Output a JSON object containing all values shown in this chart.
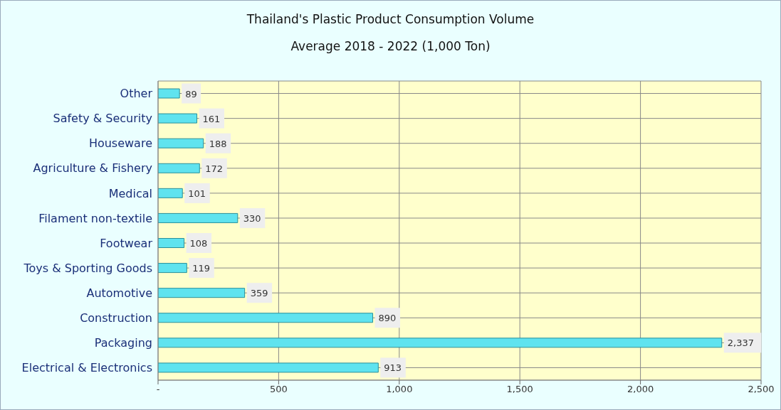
{
  "chart_data": {
    "type": "bar",
    "orientation": "horizontal",
    "title": "Thailand's Plastic Product Consumption Volume",
    "subtitle": "Average 2018 - 2022 (1,000 Ton)",
    "categories": [
      "Other",
      "Safety & Security",
      "Houseware",
      "Agriculture & Fishery",
      "Medical ",
      "Filament non-textile",
      "Footwear",
      "Toys & Sporting Goods",
      "Automotive",
      "Construction",
      "Packaging",
      "Electrical & Electronics"
    ],
    "values": [
      89,
      161,
      188,
      172,
      101,
      330,
      108,
      119,
      359,
      890,
      2337,
      913
    ],
    "value_labels": [
      "89",
      "161",
      "188",
      "172",
      "101",
      "330",
      "108",
      "119",
      "359",
      "890",
      "2,337",
      "913"
    ],
    "color": "#5fe3ef",
    "xlim": [
      0,
      2500
    ],
    "xticks": [
      {
        "value": 0,
        "label": "-"
      },
      {
        "value": 500,
        "label": "500"
      },
      {
        "value": 1000,
        "label": "1,000"
      },
      {
        "value": 1500,
        "label": "1,500"
      },
      {
        "value": 2000,
        "label": "2,000"
      },
      {
        "value": 2500,
        "label": "2,500"
      }
    ],
    "grid": true,
    "legend": false
  }
}
